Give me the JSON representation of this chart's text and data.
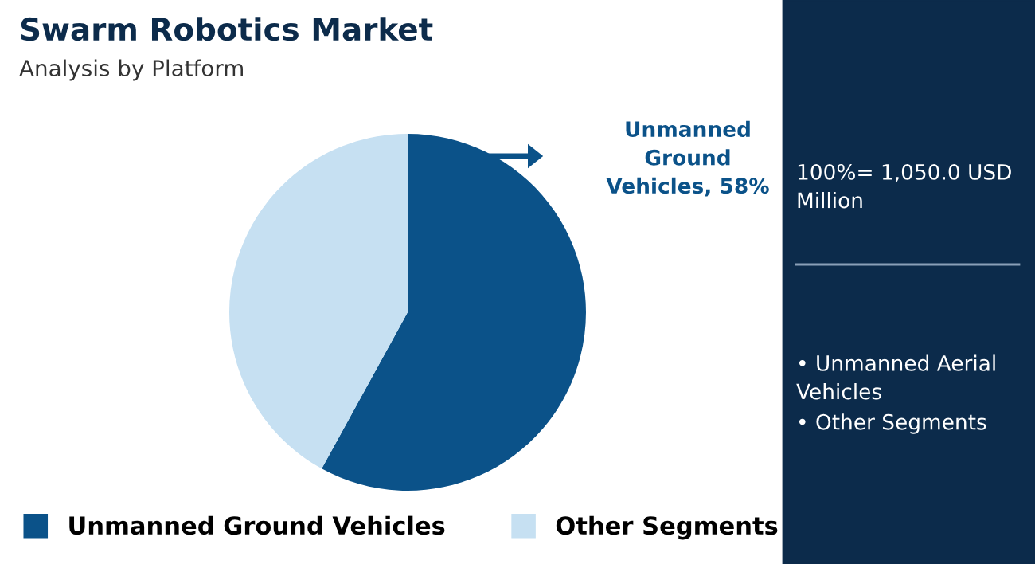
{
  "chart_data": {
    "type": "pie",
    "title": "Swarm Robotics Market",
    "subtitle": "Analysis by Platform",
    "categories": [
      "Unmanned Ground Vehicles",
      "Other Segments"
    ],
    "values": [
      58,
      42
    ],
    "colors": [
      "#0b5289",
      "#c6e0f2"
    ],
    "value_labels": [
      "Unmanned Ground Vehicles, 58%",
      null
    ],
    "legend": "bottom",
    "annotations": [
      "100%= 1,050.0 USD Million",
      "• Unmanned Aerial Vehicles",
      "• Other Segments"
    ]
  }
}
